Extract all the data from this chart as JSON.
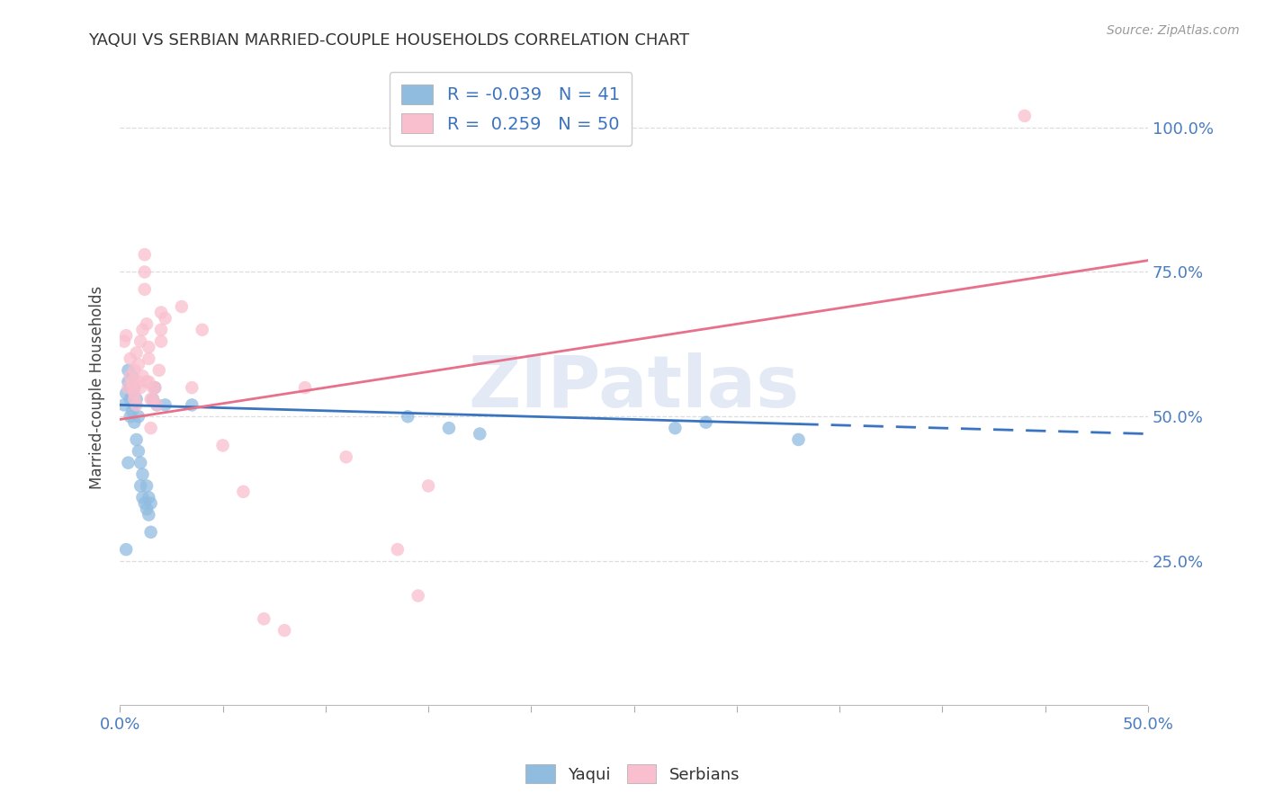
{
  "title": "YAQUI VS SERBIAN MARRIED-COUPLE HOUSEHOLDS CORRELATION CHART",
  "source": "Source: ZipAtlas.com",
  "ylabel": "Married-couple Households",
  "xlim": [
    0.0,
    0.5
  ],
  "ylim": [
    0.0,
    1.1
  ],
  "xtick_vals": [
    0.0,
    0.05,
    0.1,
    0.15,
    0.2,
    0.25,
    0.3,
    0.35,
    0.4,
    0.45,
    0.5
  ],
  "xtick_labels_show": {
    "0.0": "0.0%",
    "0.50": "50.0%"
  },
  "ytick_vals": [
    0.25,
    0.5,
    0.75,
    1.0
  ],
  "ytick_labels": [
    "25.0%",
    "50.0%",
    "75.0%",
    "100.0%"
  ],
  "yaqui_color": "#90bce0",
  "serbian_color": "#f9bfce",
  "yaqui_line_color": "#3a74c0",
  "serbian_line_color": "#e8708a",
  "yaqui_R": -0.039,
  "yaqui_N": 41,
  "serbian_R": 0.259,
  "serbian_N": 50,
  "legend_label_yaqui": "Yaqui",
  "legend_label_serbian": "Serbians",
  "watermark": "ZIPatlas",
  "background_color": "#ffffff",
  "yaqui_scatter": [
    [
      0.002,
      0.52
    ],
    [
      0.003,
      0.54
    ],
    [
      0.004,
      0.56
    ],
    [
      0.004,
      0.58
    ],
    [
      0.005,
      0.55
    ],
    [
      0.005,
      0.53
    ],
    [
      0.005,
      0.5
    ],
    [
      0.006,
      0.57
    ],
    [
      0.006,
      0.54
    ],
    [
      0.006,
      0.51
    ],
    [
      0.007,
      0.55
    ],
    [
      0.007,
      0.52
    ],
    [
      0.007,
      0.49
    ],
    [
      0.008,
      0.53
    ],
    [
      0.008,
      0.46
    ],
    [
      0.009,
      0.5
    ],
    [
      0.009,
      0.44
    ],
    [
      0.01,
      0.42
    ],
    [
      0.01,
      0.38
    ],
    [
      0.011,
      0.4
    ],
    [
      0.011,
      0.36
    ],
    [
      0.012,
      0.35
    ],
    [
      0.013,
      0.38
    ],
    [
      0.013,
      0.34
    ],
    [
      0.014,
      0.36
    ],
    [
      0.014,
      0.33
    ],
    [
      0.015,
      0.35
    ],
    [
      0.015,
      0.3
    ],
    [
      0.003,
      0.27
    ],
    [
      0.004,
      0.42
    ],
    [
      0.016,
      0.53
    ],
    [
      0.017,
      0.55
    ],
    [
      0.018,
      0.52
    ],
    [
      0.022,
      0.52
    ],
    [
      0.035,
      0.52
    ],
    [
      0.14,
      0.5
    ],
    [
      0.16,
      0.48
    ],
    [
      0.175,
      0.47
    ],
    [
      0.27,
      0.48
    ],
    [
      0.285,
      0.49
    ],
    [
      0.33,
      0.46
    ]
  ],
  "serbian_scatter": [
    [
      0.002,
      0.63
    ],
    [
      0.003,
      0.64
    ],
    [
      0.004,
      0.55
    ],
    [
      0.005,
      0.57
    ],
    [
      0.005,
      0.6
    ],
    [
      0.006,
      0.55
    ],
    [
      0.006,
      0.56
    ],
    [
      0.007,
      0.53
    ],
    [
      0.007,
      0.58
    ],
    [
      0.007,
      0.54
    ],
    [
      0.008,
      0.52
    ],
    [
      0.008,
      0.61
    ],
    [
      0.009,
      0.59
    ],
    [
      0.009,
      0.56
    ],
    [
      0.01,
      0.55
    ],
    [
      0.01,
      0.63
    ],
    [
      0.011,
      0.57
    ],
    [
      0.011,
      0.65
    ],
    [
      0.012,
      0.72
    ],
    [
      0.012,
      0.78
    ],
    [
      0.012,
      0.75
    ],
    [
      0.013,
      0.56
    ],
    [
      0.013,
      0.66
    ],
    [
      0.014,
      0.62
    ],
    [
      0.014,
      0.6
    ],
    [
      0.014,
      0.56
    ],
    [
      0.015,
      0.53
    ],
    [
      0.015,
      0.48
    ],
    [
      0.016,
      0.53
    ],
    [
      0.016,
      0.55
    ],
    [
      0.017,
      0.55
    ],
    [
      0.018,
      0.52
    ],
    [
      0.019,
      0.58
    ],
    [
      0.02,
      0.65
    ],
    [
      0.02,
      0.63
    ],
    [
      0.02,
      0.68
    ],
    [
      0.022,
      0.67
    ],
    [
      0.03,
      0.69
    ],
    [
      0.035,
      0.55
    ],
    [
      0.04,
      0.65
    ],
    [
      0.05,
      0.45
    ],
    [
      0.06,
      0.37
    ],
    [
      0.07,
      0.15
    ],
    [
      0.08,
      0.13
    ],
    [
      0.09,
      0.55
    ],
    [
      0.11,
      0.43
    ],
    [
      0.135,
      0.27
    ],
    [
      0.145,
      0.19
    ],
    [
      0.15,
      0.38
    ],
    [
      0.44,
      1.02
    ]
  ],
  "yaqui_trend_x_switch": 0.33,
  "grid_color": "#dddddd"
}
